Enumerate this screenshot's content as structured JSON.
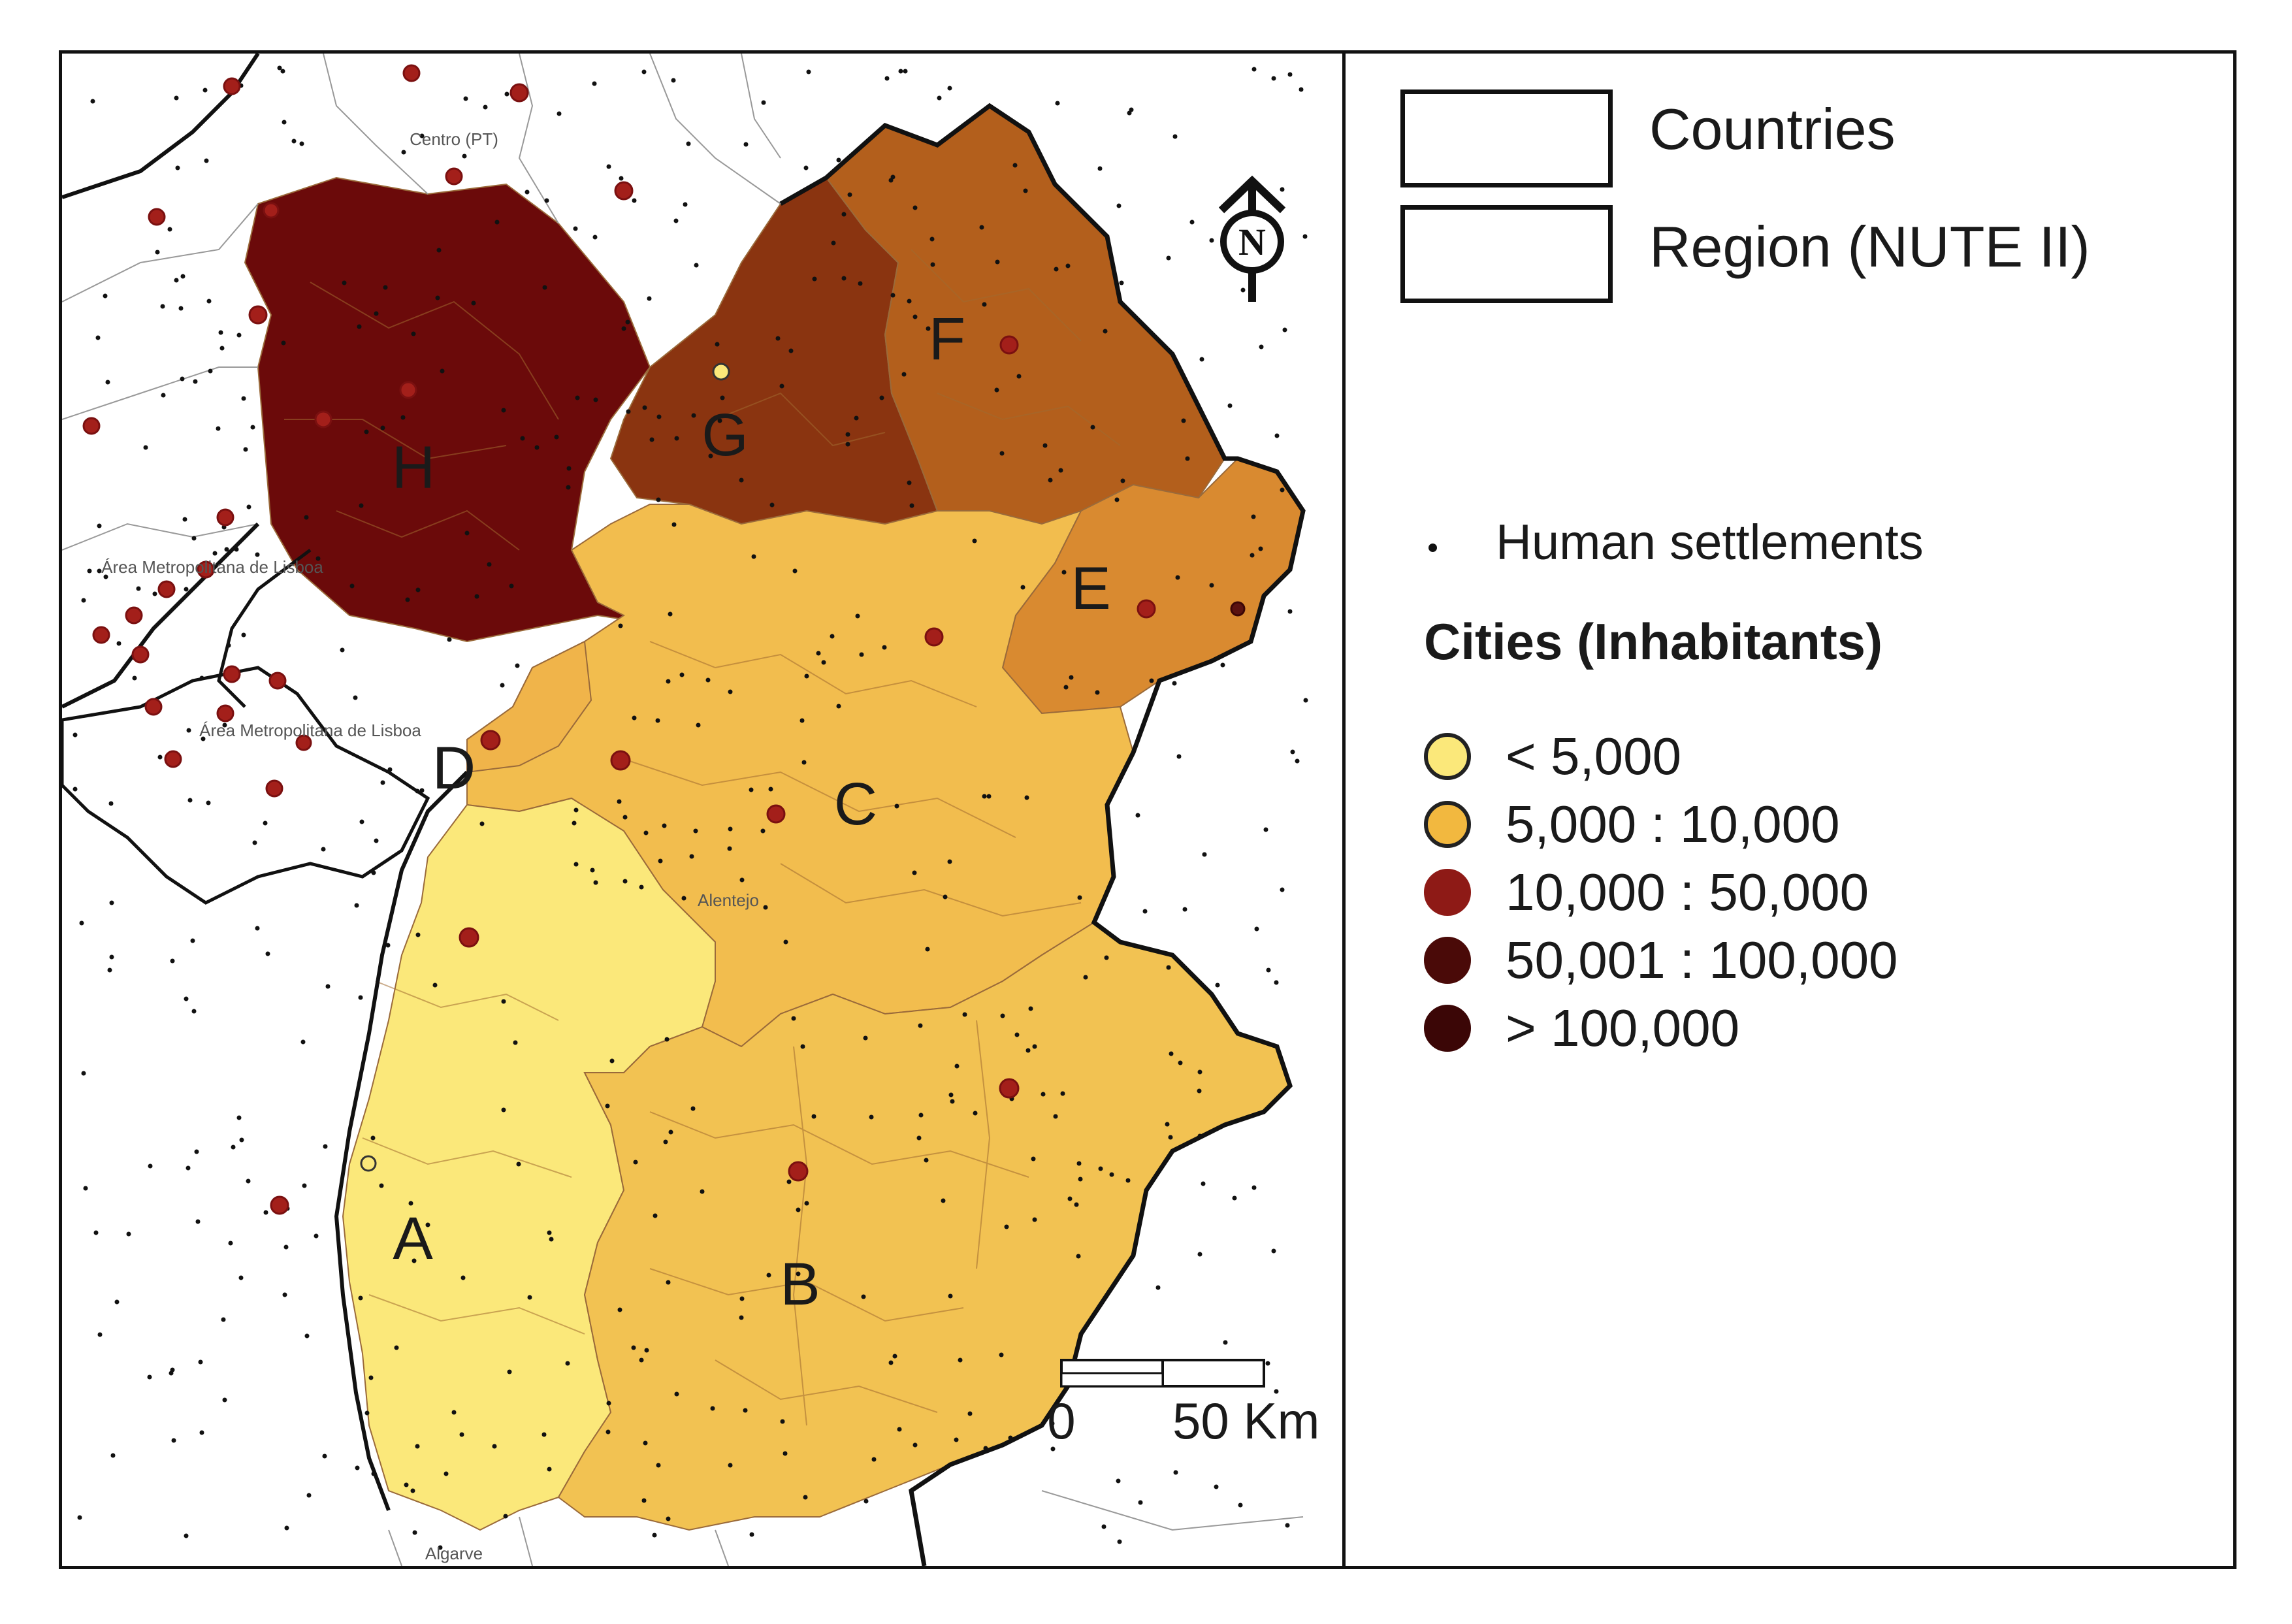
{
  "legend": {
    "countries_label": "Countries",
    "region_label": "Region (NUTE II)",
    "settlements_label": "Human settlements",
    "cities_title": "Cities (Inhabitants)",
    "city_classes": [
      {
        "label": "< 5,000",
        "color": "#fbe87a",
        "stroke": "#222"
      },
      {
        "label": "5,000 : 10,000",
        "color": "#f2b83f",
        "stroke": "#222"
      },
      {
        "label": "10,000 : 50,000",
        "color": "#8e1a16",
        "stroke": "#8e1a16"
      },
      {
        "label": "50,001 : 100,000",
        "color": "#4a0a08",
        "stroke": "#4a0a08"
      },
      {
        "label": "> 100,000",
        "color": "#3b0606",
        "stroke": "#3b0606"
      }
    ]
  },
  "map": {
    "north_label": "N",
    "scale_zero": "0",
    "scale_label": "50 Km",
    "place_names": [
      "Centro (PT)",
      "Área Metropolitana de Lisboa",
      "Área Metropolitana de Lisboa",
      "Alentejo",
      "Algarve"
    ],
    "subregion_labels": [
      "A",
      "B",
      "C",
      "D",
      "E",
      "F",
      "G",
      "H"
    ],
    "subregion_colors": {
      "A": "#fbe87a",
      "B": "#f2c252",
      "C": "#f2bd4e",
      "D": "#f0b44a",
      "E": "#d98a30",
      "F": "#b35f1c",
      "G": "#8a3410",
      "H": "#6b0a0a"
    }
  }
}
